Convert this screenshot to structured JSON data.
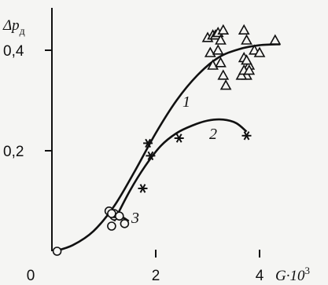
{
  "chart_data": {
    "type": "scatter",
    "title": "",
    "xlabel": "G·10³",
    "ylabel": "Δp_д",
    "ylabel_main": "Δp",
    "ylabel_sub": "д",
    "xlabel_main": "G·10",
    "xlabel_sup": "3",
    "xlim": [
      0,
      4.75
    ],
    "ylim": [
      0,
      0.47
    ],
    "x_ticks": [
      {
        "value": 0,
        "label": "0"
      },
      {
        "value": 2,
        "label": "2"
      },
      {
        "value": 4,
        "label": "4"
      }
    ],
    "y_ticks": [
      {
        "value": 0.2,
        "label": "0,2"
      },
      {
        "value": 0.4,
        "label": "0,4"
      }
    ],
    "grid": false,
    "curve_labels": [
      "1",
      "2",
      "3"
    ],
    "curves": [
      {
        "label": "1",
        "points": [
          [
            0.05,
            0.0
          ],
          [
            0.4,
            0.012
          ],
          [
            0.8,
            0.04
          ],
          [
            1.2,
            0.09
          ],
          [
            1.6,
            0.16
          ],
          [
            2.0,
            0.235
          ],
          [
            2.4,
            0.3
          ],
          [
            2.8,
            0.35
          ],
          [
            3.2,
            0.385
          ],
          [
            3.6,
            0.402
          ],
          [
            4.0,
            0.41
          ],
          [
            4.4,
            0.412
          ]
        ]
      },
      {
        "label": "2",
        "points": [
          [
            1.2,
            0.06
          ],
          [
            1.5,
            0.12
          ],
          [
            1.8,
            0.17
          ],
          [
            2.1,
            0.21
          ],
          [
            2.4,
            0.235
          ],
          [
            2.7,
            0.25
          ],
          [
            3.0,
            0.26
          ],
          [
            3.3,
            0.262
          ],
          [
            3.55,
            0.255
          ],
          [
            3.75,
            0.238
          ]
        ]
      },
      {
        "label": "3",
        "points": [
          [
            1.05,
            0.075
          ],
          [
            1.2,
            0.072
          ],
          [
            1.35,
            0.068
          ],
          [
            1.48,
            0.06
          ]
        ]
      }
    ],
    "series": [
      {
        "marker": "triangle",
        "x": [
          3.0,
          3.1,
          3.15,
          3.2,
          3.25,
          3.3,
          3.05,
          3.1,
          3.2,
          3.25,
          3.3,
          3.35,
          3.7,
          3.75,
          3.7,
          3.8,
          3.75,
          3.65,
          3.7,
          3.8,
          3.75,
          3.9,
          4.0,
          4.3
        ],
        "y": [
          0.425,
          0.43,
          0.43,
          0.435,
          0.42,
          0.44,
          0.395,
          0.37,
          0.4,
          0.375,
          0.35,
          0.33,
          0.44,
          0.42,
          0.385,
          0.37,
          0.35,
          0.35,
          0.36,
          0.36,
          0.38,
          0.4,
          0.395,
          0.42
        ]
      },
      {
        "marker": "asterisk",
        "x": [
          1.75,
          1.85,
          1.9,
          2.45,
          3.75
        ],
        "y": [
          0.125,
          0.215,
          0.19,
          0.225,
          0.23
        ]
      },
      {
        "marker": "circle",
        "x": [
          0.1,
          1.1,
          1.2,
          1.15,
          1.2,
          1.3,
          1.4,
          1.15
        ],
        "y": [
          0.0,
          0.08,
          0.07,
          0.05,
          0.075,
          0.07,
          0.055,
          0.075
        ]
      }
    ]
  }
}
